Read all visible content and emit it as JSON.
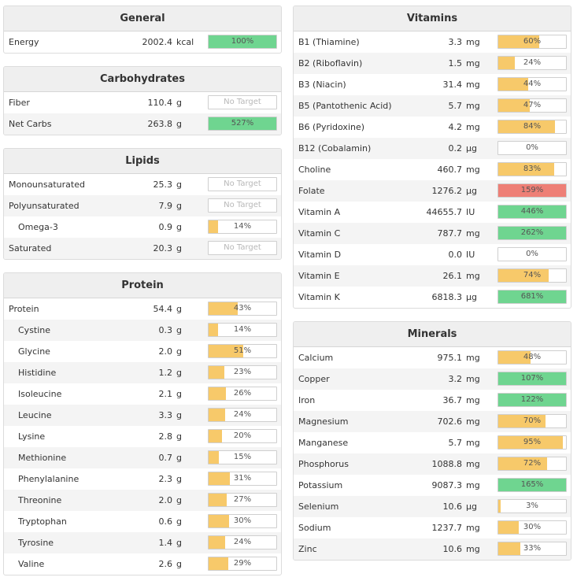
{
  "colors": {
    "yellow": "#f7c96a",
    "green": "#6fd590",
    "red": "#ee7f76"
  },
  "general": {
    "title": "General",
    "rows": [
      {
        "name": "Energy",
        "amount": "2002.4",
        "unit": "kcal",
        "pct": "100%",
        "fill": 1.0,
        "color": "green"
      }
    ]
  },
  "carbohydrates": {
    "title": "Carbohydrates",
    "rows": [
      {
        "name": "Fiber",
        "amount": "110.4",
        "unit": "g",
        "pct": "No Target",
        "fill": 0,
        "color": "none"
      },
      {
        "name": "Net Carbs",
        "amount": "263.8",
        "unit": "g",
        "pct": "527%",
        "fill": 1.0,
        "color": "green"
      }
    ]
  },
  "lipids": {
    "title": "Lipids",
    "rows": [
      {
        "name": "Monounsaturated",
        "amount": "25.3",
        "unit": "g",
        "pct": "No Target",
        "fill": 0,
        "color": "none"
      },
      {
        "name": "Polyunsaturated",
        "amount": "7.9",
        "unit": "g",
        "pct": "No Target",
        "fill": 0,
        "color": "none"
      },
      {
        "name": "Omega-3",
        "amount": "0.9",
        "unit": "g",
        "pct": "14%",
        "fill": 0.14,
        "color": "yellow",
        "indent": true
      },
      {
        "name": "Saturated",
        "amount": "20.3",
        "unit": "g",
        "pct": "No Target",
        "fill": 0,
        "color": "none"
      }
    ]
  },
  "protein": {
    "title": "Protein",
    "rows": [
      {
        "name": "Protein",
        "amount": "54.4",
        "unit": "g",
        "pct": "43%",
        "fill": 0.43,
        "color": "yellow"
      },
      {
        "name": "Cystine",
        "amount": "0.3",
        "unit": "g",
        "pct": "14%",
        "fill": 0.14,
        "color": "yellow",
        "indent": true
      },
      {
        "name": "Glycine",
        "amount": "2.0",
        "unit": "g",
        "pct": "51%",
        "fill": 0.51,
        "color": "yellow",
        "indent": true
      },
      {
        "name": "Histidine",
        "amount": "1.2",
        "unit": "g",
        "pct": "23%",
        "fill": 0.23,
        "color": "yellow",
        "indent": true
      },
      {
        "name": "Isoleucine",
        "amount": "2.1",
        "unit": "g",
        "pct": "26%",
        "fill": 0.26,
        "color": "yellow",
        "indent": true
      },
      {
        "name": "Leucine",
        "amount": "3.3",
        "unit": "g",
        "pct": "24%",
        "fill": 0.24,
        "color": "yellow",
        "indent": true
      },
      {
        "name": "Lysine",
        "amount": "2.8",
        "unit": "g",
        "pct": "20%",
        "fill": 0.2,
        "color": "yellow",
        "indent": true
      },
      {
        "name": "Methionine",
        "amount": "0.7",
        "unit": "g",
        "pct": "15%",
        "fill": 0.15,
        "color": "yellow",
        "indent": true
      },
      {
        "name": "Phenylalanine",
        "amount": "2.3",
        "unit": "g",
        "pct": "31%",
        "fill": 0.31,
        "color": "yellow",
        "indent": true
      },
      {
        "name": "Threonine",
        "amount": "2.0",
        "unit": "g",
        "pct": "27%",
        "fill": 0.27,
        "color": "yellow",
        "indent": true
      },
      {
        "name": "Tryptophan",
        "amount": "0.6",
        "unit": "g",
        "pct": "30%",
        "fill": 0.3,
        "color": "yellow",
        "indent": true
      },
      {
        "name": "Tyrosine",
        "amount": "1.4",
        "unit": "g",
        "pct": "24%",
        "fill": 0.24,
        "color": "yellow",
        "indent": true
      },
      {
        "name": "Valine",
        "amount": "2.6",
        "unit": "g",
        "pct": "29%",
        "fill": 0.29,
        "color": "yellow",
        "indent": true
      }
    ]
  },
  "vitamins": {
    "title": "Vitamins",
    "rows": [
      {
        "name": "B1 (Thiamine)",
        "amount": "3.3",
        "unit": "mg",
        "pct": "60%",
        "fill": 0.6,
        "color": "yellow"
      },
      {
        "name": "B2 (Riboflavin)",
        "amount": "1.5",
        "unit": "mg",
        "pct": "24%",
        "fill": 0.24,
        "color": "yellow"
      },
      {
        "name": "B3 (Niacin)",
        "amount": "31.4",
        "unit": "mg",
        "pct": "44%",
        "fill": 0.44,
        "color": "yellow"
      },
      {
        "name": "B5 (Pantothenic Acid)",
        "amount": "5.7",
        "unit": "mg",
        "pct": "47%",
        "fill": 0.47,
        "color": "yellow"
      },
      {
        "name": "B6 (Pyridoxine)",
        "amount": "4.2",
        "unit": "mg",
        "pct": "84%",
        "fill": 0.84,
        "color": "yellow"
      },
      {
        "name": "B12 (Cobalamin)",
        "amount": "0.2",
        "unit": "µg",
        "pct": "0%",
        "fill": 0,
        "color": "yellow"
      },
      {
        "name": "Choline",
        "amount": "460.7",
        "unit": "mg",
        "pct": "83%",
        "fill": 0.83,
        "color": "yellow"
      },
      {
        "name": "Folate",
        "amount": "1276.2",
        "unit": "µg",
        "pct": "159%",
        "fill": 1.0,
        "color": "red"
      },
      {
        "name": "Vitamin A",
        "amount": "44655.7",
        "unit": "IU",
        "pct": "446%",
        "fill": 1.0,
        "color": "green"
      },
      {
        "name": "Vitamin C",
        "amount": "787.7",
        "unit": "mg",
        "pct": "262%",
        "fill": 1.0,
        "color": "green"
      },
      {
        "name": "Vitamin D",
        "amount": "0.0",
        "unit": "IU",
        "pct": "0%",
        "fill": 0,
        "color": "yellow"
      },
      {
        "name": "Vitamin E",
        "amount": "26.1",
        "unit": "mg",
        "pct": "74%",
        "fill": 0.74,
        "color": "yellow"
      },
      {
        "name": "Vitamin K",
        "amount": "6818.3",
        "unit": "µg",
        "pct": "681%",
        "fill": 1.0,
        "color": "green"
      }
    ]
  },
  "minerals": {
    "title": "Minerals",
    "rows": [
      {
        "name": "Calcium",
        "amount": "975.1",
        "unit": "mg",
        "pct": "48%",
        "fill": 0.48,
        "color": "yellow"
      },
      {
        "name": "Copper",
        "amount": "3.2",
        "unit": "mg",
        "pct": "107%",
        "fill": 1.0,
        "color": "green"
      },
      {
        "name": "Iron",
        "amount": "36.7",
        "unit": "mg",
        "pct": "122%",
        "fill": 1.0,
        "color": "green"
      },
      {
        "name": "Magnesium",
        "amount": "702.6",
        "unit": "mg",
        "pct": "70%",
        "fill": 0.7,
        "color": "yellow"
      },
      {
        "name": "Manganese",
        "amount": "5.7",
        "unit": "mg",
        "pct": "95%",
        "fill": 0.95,
        "color": "yellow"
      },
      {
        "name": "Phosphorus",
        "amount": "1088.8",
        "unit": "mg",
        "pct": "72%",
        "fill": 0.72,
        "color": "yellow"
      },
      {
        "name": "Potassium",
        "amount": "9087.3",
        "unit": "mg",
        "pct": "165%",
        "fill": 1.0,
        "color": "green"
      },
      {
        "name": "Selenium",
        "amount": "10.6",
        "unit": "µg",
        "pct": "3%",
        "fill": 0.03,
        "color": "yellow"
      },
      {
        "name": "Sodium",
        "amount": "1237.7",
        "unit": "mg",
        "pct": "30%",
        "fill": 0.3,
        "color": "yellow"
      },
      {
        "name": "Zinc",
        "amount": "10.6",
        "unit": "mg",
        "pct": "33%",
        "fill": 0.33,
        "color": "yellow"
      }
    ]
  }
}
